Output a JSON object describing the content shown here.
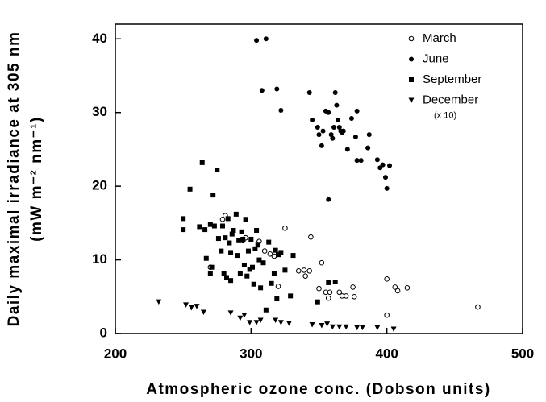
{
  "chart_data": {
    "type": "scatter",
    "xlabel": "Atmospheric ozone conc. (Dobson units)",
    "ylabel": [
      "Daily maximal irradiance at 305 nm",
      "(mW m⁻² nm⁻¹)"
    ],
    "xlim": [
      200,
      500
    ],
    "xticks": [
      200,
      300,
      400,
      500
    ],
    "ylim": [
      0,
      42
    ],
    "yticks": [
      0,
      10,
      20,
      30,
      40
    ],
    "grid": false,
    "legend": "upper right",
    "series": [
      {
        "name": "March",
        "color": "#000000",
        "marker": "circle-open",
        "x": [
          270,
          279,
          281,
          294,
          296,
          306,
          310,
          314,
          320,
          325,
          335,
          340,
          339,
          344,
          343,
          350,
          352,
          355,
          357,
          358,
          365,
          367,
          370,
          375,
          376,
          400,
          400,
          406,
          408,
          415,
          467,
          317
        ],
        "values": [
          9,
          15.5,
          16,
          12.6,
          13,
          12.5,
          11.2,
          10.8,
          6.4,
          14.3,
          8.5,
          7.8,
          8.6,
          13.1,
          8.5,
          6.1,
          9.6,
          5.6,
          4.8,
          5.6,
          5.6,
          5.1,
          5.1,
          6.3,
          5,
          2.5,
          7.4,
          6.3,
          5.8,
          6.2,
          3.6,
          10.5
        ]
      },
      {
        "name": "June",
        "color": "#000000",
        "marker": "circle",
        "x": [
          304,
          311,
          308,
          319,
          322,
          343,
          345,
          349,
          350,
          353,
          352,
          355,
          357,
          359,
          360,
          361,
          362,
          363,
          364,
          365,
          366,
          367,
          368,
          371,
          374,
          377,
          378,
          378,
          381,
          386,
          387,
          393,
          395,
          397,
          399,
          400,
          402,
          357
        ],
        "values": [
          39.8,
          40,
          33,
          33.2,
          30.3,
          32.7,
          29,
          28,
          27,
          27.5,
          25.5,
          30.2,
          30,
          27,
          26.5,
          28,
          32.7,
          31,
          29,
          28,
          27.5,
          27.3,
          27.5,
          25,
          29.2,
          26.7,
          30.2,
          23.5,
          23.5,
          25.2,
          27,
          23.6,
          22.5,
          22.9,
          21.2,
          19.7,
          22.8,
          18.2
        ]
      },
      {
        "name": "September",
        "color": "#000000",
        "marker": "square",
        "x": [
          250,
          250,
          255,
          262,
          264,
          266,
          267,
          270,
          270,
          271,
          272,
          273,
          275,
          276,
          278,
          279,
          280,
          281,
          282,
          283,
          284,
          285,
          285,
          286,
          287,
          289,
          290,
          291,
          292,
          293,
          294,
          295,
          296,
          297,
          298,
          299,
          300,
          301,
          302,
          303,
          304,
          305,
          306,
          307,
          309,
          311,
          313,
          315,
          317,
          318,
          319,
          320,
          322,
          325,
          329,
          331,
          349,
          357,
          362
        ],
        "values": [
          15.6,
          14.1,
          19.6,
          14.5,
          23.2,
          14.1,
          10.2,
          8.2,
          14.8,
          9,
          18.8,
          14.6,
          22.2,
          12.9,
          11.2,
          14.6,
          8.1,
          13,
          7.6,
          15.6,
          12.3,
          11,
          7.2,
          13.5,
          14,
          16.2,
          10.6,
          12.6,
          8.2,
          13.8,
          12.8,
          9.3,
          15.5,
          7.8,
          11.2,
          8.7,
          12.8,
          9,
          6.7,
          11.5,
          14,
          12,
          10,
          6.2,
          9.6,
          3.2,
          12.4,
          6.8,
          8.2,
          11.3,
          4.7,
          10.7,
          11,
          8.6,
          5.1,
          10.6,
          4.3,
          6.9,
          7
        ]
      },
      {
        "name": "December",
        "color": "#000000",
        "marker": "triangle-down",
        "note": "(x 10)",
        "x": [
          232,
          252,
          256,
          260,
          265,
          285,
          292,
          295,
          299,
          304,
          307,
          318,
          322,
          328,
          345,
          352,
          356,
          360,
          365,
          370,
          378,
          382,
          393,
          405
        ],
        "values": [
          4.3,
          3.9,
          3.5,
          3.7,
          2.9,
          2.8,
          2.1,
          2.5,
          1.5,
          1.5,
          1.8,
          1.8,
          1.5,
          1.4,
          1.2,
          1.1,
          1.3,
          0.9,
          0.9,
          0.9,
          0.8,
          0.8,
          0.8,
          0.6
        ]
      }
    ]
  }
}
